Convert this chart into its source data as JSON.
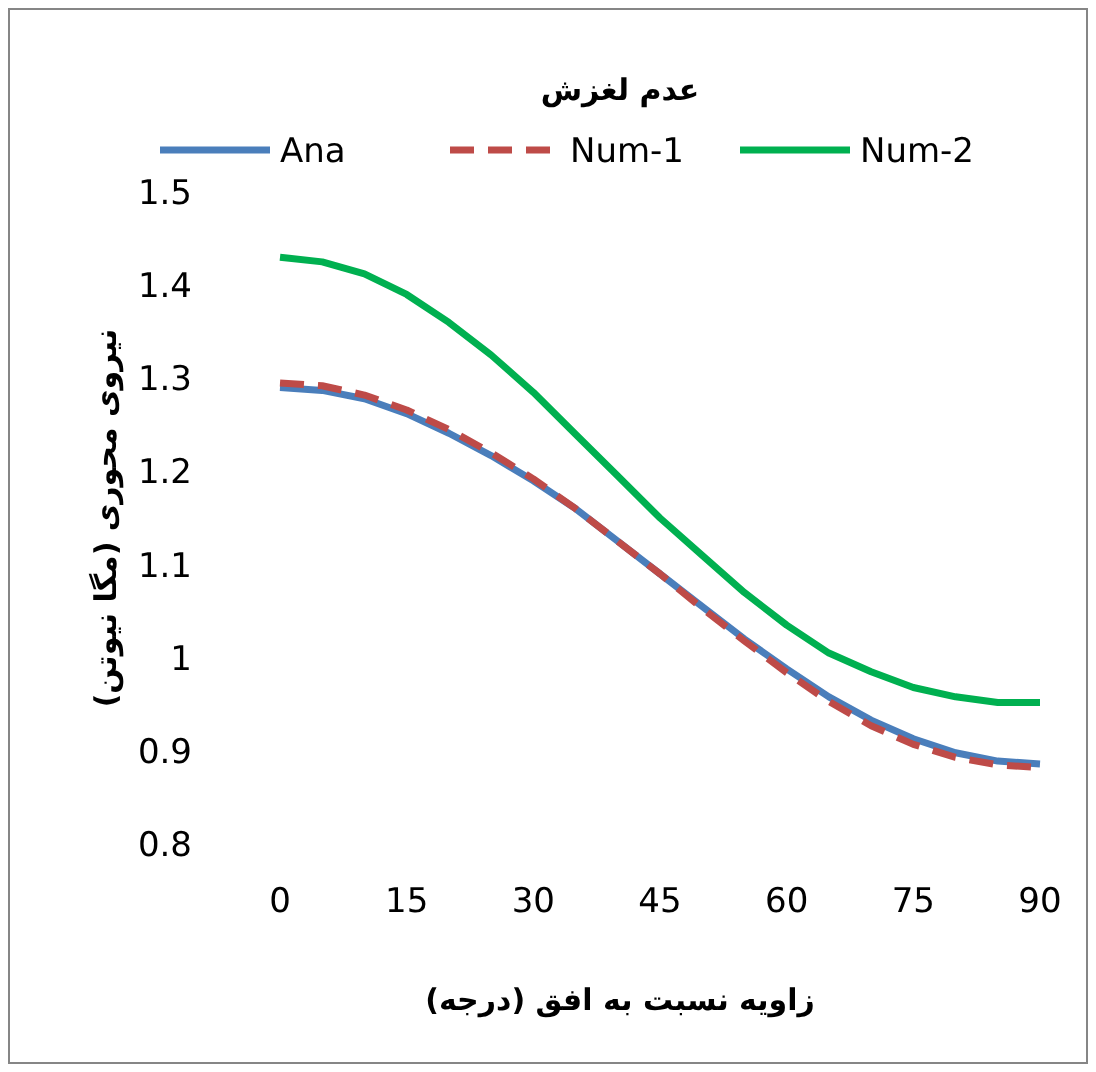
{
  "chart_data": {
    "type": "line",
    "title": "عدم لغزش",
    "xlabel": "زاویه نسبت به افق (درجه)",
    "ylabel": "نیروی محوری (مگا نیوتن)",
    "x": [
      0,
      5,
      10,
      15,
      20,
      25,
      30,
      35,
      40,
      45,
      50,
      55,
      60,
      65,
      70,
      75,
      80,
      85,
      90
    ],
    "series": [
      {
        "name": "Ana",
        "color": "#4a7ebb",
        "line_style": "solid",
        "values": [
          1.29,
          1.287,
          1.278,
          1.262,
          1.241,
          1.217,
          1.19,
          1.16,
          1.125,
          1.09,
          1.055,
          1.02,
          0.988,
          0.958,
          0.933,
          0.913,
          0.898,
          0.889,
          0.886
        ]
      },
      {
        "name": "Num-1",
        "color": "#be4b48",
        "line_style": "dashed",
        "values": [
          1.295,
          1.292,
          1.282,
          1.266,
          1.245,
          1.22,
          1.192,
          1.16,
          1.125,
          1.09,
          1.053,
          1.018,
          0.984,
          0.953,
          0.927,
          0.907,
          0.893,
          0.885,
          0.882
        ]
      },
      {
        "name": "Num-2",
        "color": "#00b050",
        "line_style": "solid",
        "values": [
          1.43,
          1.425,
          1.412,
          1.39,
          1.36,
          1.325,
          1.285,
          1.24,
          1.195,
          1.15,
          1.11,
          1.07,
          1.035,
          1.005,
          0.985,
          0.968,
          0.958,
          0.952,
          0.952
        ]
      }
    ],
    "xlim": [
      0,
      90
    ],
    "ylim": [
      0.8,
      1.5
    ],
    "xticks": [
      0,
      15,
      30,
      45,
      60,
      75,
      90
    ],
    "yticks": [
      0.8,
      0.9,
      1,
      1.1,
      1.2,
      1.3,
      1.4,
      1.5
    ],
    "legend": "top",
    "marker": "none"
  }
}
